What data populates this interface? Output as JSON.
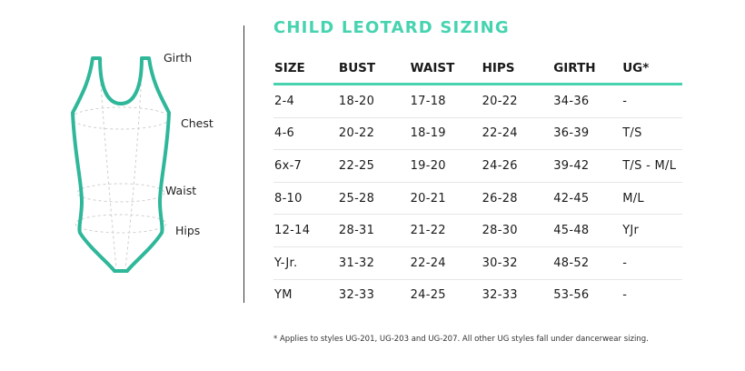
{
  "diagram": {
    "labels": {
      "girth": "Girth",
      "chest": "Chest",
      "waist": "Waist",
      "hips": "Hips"
    },
    "outline_color": "#2fb79a"
  },
  "title": "CHILD LEOTARD SIZING",
  "accent_color": "#47d3b0",
  "table": {
    "headers": [
      "SIZE",
      "BUST",
      "WAIST",
      "HIPS",
      "GIRTH",
      "UG*"
    ],
    "rows": [
      [
        "2-4",
        "18-20",
        "17-18",
        "20-22",
        "34-36",
        "-"
      ],
      [
        "4-6",
        "20-22",
        "18-19",
        "22-24",
        "36-39",
        "T/S"
      ],
      [
        "6x-7",
        "22-25",
        "19-20",
        "24-26",
        "39-42",
        "T/S - M/L"
      ],
      [
        "8-10",
        "25-28",
        "20-21",
        "26-28",
        "42-45",
        "M/L"
      ],
      [
        "12-14",
        "28-31",
        "21-22",
        "28-30",
        "45-48",
        "YJr"
      ],
      [
        "Y-Jr.",
        "31-32",
        "22-24",
        "30-32",
        "48-52",
        "-"
      ],
      [
        "YM",
        "32-33",
        "24-25",
        "32-33",
        "53-56",
        "-"
      ]
    ]
  },
  "footnote": "* Applies to styles UG-201, UG-203 and UG-207. All other UG styles fall under dancerwear sizing."
}
